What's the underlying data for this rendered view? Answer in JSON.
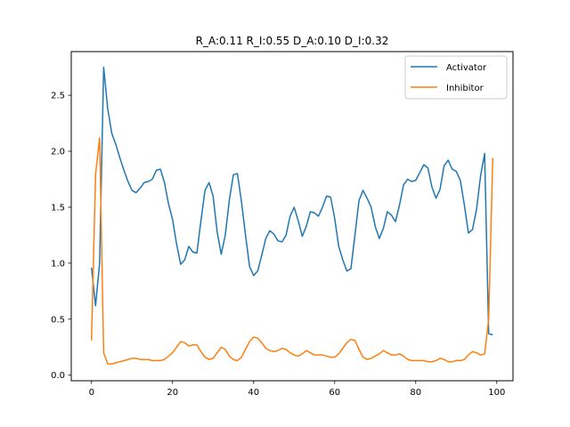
{
  "chart_data": {
    "type": "line",
    "title": "R_A:0.11 R_I:0.55 D_A:0.10 D_I:0.32",
    "xlabel": "",
    "ylabel": "",
    "xlim": [
      -5,
      104
    ],
    "ylim": [
      -0.05,
      2.89
    ],
    "xticks": [
      0,
      20,
      40,
      60,
      80,
      100
    ],
    "yticks": [
      0.0,
      0.5,
      1.0,
      1.5,
      2.0,
      2.5
    ],
    "xtick_labels": [
      "0",
      "20",
      "40",
      "60",
      "80",
      "100"
    ],
    "ytick_labels": [
      "0.0",
      "0.5",
      "1.0",
      "1.5",
      "2.0",
      "2.5"
    ],
    "grid": false,
    "legend_position": "top-right",
    "series": [
      {
        "name": "Activator",
        "color": "#1f77b4",
        "x": [
          0,
          1,
          2,
          3,
          4,
          5,
          6,
          7,
          8,
          9,
          10,
          11,
          12,
          13,
          14,
          15,
          16,
          17,
          18,
          19,
          20,
          21,
          22,
          23,
          24,
          25,
          26,
          27,
          28,
          29,
          30,
          31,
          32,
          33,
          34,
          35,
          36,
          37,
          38,
          39,
          40,
          41,
          42,
          43,
          44,
          45,
          46,
          47,
          48,
          49,
          50,
          51,
          52,
          53,
          54,
          55,
          56,
          57,
          58,
          59,
          60,
          61,
          62,
          63,
          64,
          65,
          66,
          67,
          68,
          69,
          70,
          71,
          72,
          73,
          74,
          75,
          76,
          77,
          78,
          79,
          80,
          81,
          82,
          83,
          84,
          85,
          86,
          87,
          88,
          89,
          90,
          91,
          92,
          93,
          94,
          95,
          96,
          97,
          98,
          99
        ],
        "values": [
          0.96,
          0.62,
          1.0,
          2.75,
          2.38,
          2.16,
          2.06,
          1.94,
          1.83,
          1.73,
          1.65,
          1.63,
          1.67,
          1.72,
          1.73,
          1.75,
          1.83,
          1.84,
          1.72,
          1.53,
          1.39,
          1.17,
          0.99,
          1.03,
          1.15,
          1.1,
          1.09,
          1.38,
          1.65,
          1.72,
          1.6,
          1.28,
          1.08,
          1.25,
          1.56,
          1.79,
          1.8,
          1.55,
          1.25,
          0.97,
          0.89,
          0.93,
          1.07,
          1.22,
          1.29,
          1.26,
          1.2,
          1.19,
          1.25,
          1.42,
          1.5,
          1.38,
          1.24,
          1.33,
          1.46,
          1.45,
          1.42,
          1.5,
          1.6,
          1.59,
          1.4,
          1.15,
          1.03,
          0.93,
          0.95,
          1.25,
          1.56,
          1.65,
          1.58,
          1.5,
          1.33,
          1.22,
          1.31,
          1.46,
          1.43,
          1.37,
          1.52,
          1.7,
          1.75,
          1.73,
          1.74,
          1.81,
          1.88,
          1.85,
          1.68,
          1.58,
          1.66,
          1.87,
          1.92,
          1.84,
          1.82,
          1.74,
          1.52,
          1.27,
          1.3,
          1.48,
          1.78,
          1.98,
          0.37,
          0.36
        ]
      },
      {
        "name": "Inhibitor",
        "color": "#ff7f0e",
        "x": [
          0,
          1,
          2,
          3,
          4,
          5,
          6,
          7,
          8,
          9,
          10,
          11,
          12,
          13,
          14,
          15,
          16,
          17,
          18,
          19,
          20,
          21,
          22,
          23,
          24,
          25,
          26,
          27,
          28,
          29,
          30,
          31,
          32,
          33,
          34,
          35,
          36,
          37,
          38,
          39,
          40,
          41,
          42,
          43,
          44,
          45,
          46,
          47,
          48,
          49,
          50,
          51,
          52,
          53,
          54,
          55,
          56,
          57,
          58,
          59,
          60,
          61,
          62,
          63,
          64,
          65,
          66,
          67,
          68,
          69,
          70,
          71,
          72,
          73,
          74,
          75,
          76,
          77,
          78,
          79,
          80,
          81,
          82,
          83,
          84,
          85,
          86,
          87,
          88,
          89,
          90,
          91,
          92,
          93,
          94,
          95,
          96,
          97,
          98,
          99
        ],
        "values": [
          0.31,
          1.79,
          2.12,
          0.2,
          0.1,
          0.1,
          0.11,
          0.12,
          0.13,
          0.14,
          0.15,
          0.15,
          0.14,
          0.14,
          0.14,
          0.13,
          0.13,
          0.13,
          0.14,
          0.17,
          0.2,
          0.25,
          0.3,
          0.29,
          0.26,
          0.27,
          0.27,
          0.21,
          0.16,
          0.14,
          0.15,
          0.2,
          0.25,
          0.23,
          0.17,
          0.14,
          0.13,
          0.16,
          0.23,
          0.3,
          0.34,
          0.33,
          0.29,
          0.24,
          0.22,
          0.21,
          0.22,
          0.24,
          0.23,
          0.2,
          0.18,
          0.17,
          0.19,
          0.22,
          0.2,
          0.18,
          0.18,
          0.18,
          0.17,
          0.16,
          0.16,
          0.19,
          0.24,
          0.29,
          0.32,
          0.31,
          0.23,
          0.16,
          0.14,
          0.15,
          0.17,
          0.19,
          0.22,
          0.2,
          0.18,
          0.18,
          0.19,
          0.17,
          0.14,
          0.13,
          0.13,
          0.13,
          0.13,
          0.12,
          0.12,
          0.13,
          0.15,
          0.14,
          0.12,
          0.12,
          0.13,
          0.13,
          0.14,
          0.18,
          0.21,
          0.2,
          0.18,
          0.19,
          0.5,
          1.94
        ]
      }
    ]
  }
}
